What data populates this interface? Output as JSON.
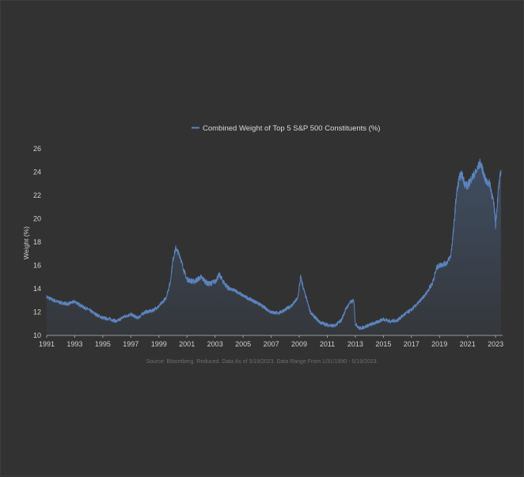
{
  "chart_data": {
    "type": "area",
    "title": "",
    "legend": {
      "placement": "top-center",
      "entries": [
        "Combined Weight of Top 5 S&P 500 Constituents (%)"
      ]
    },
    "xlabel": "",
    "ylabel": "Weight (%)",
    "x_tick_labels": [
      "1991",
      "1993",
      "1995",
      "1997",
      "1999",
      "2001",
      "2003",
      "2005",
      "2007",
      "2009",
      "2011",
      "2013",
      "2015",
      "2017",
      "2019",
      "2021",
      "2023"
    ],
    "y_tick_labels": [
      "10",
      "12",
      "14",
      "16",
      "18",
      "20",
      "22",
      "24",
      "26"
    ],
    "xlim": [
      1991.0,
      2023.5
    ],
    "ylim": [
      10,
      26
    ],
    "grid": false,
    "line_color": "#5b84bf",
    "fill_color": "#5b84bf",
    "source_note": "Source: Bloomberg. Reduced. Data As of 5/19/2023. Data Range From 1/31/1990 - 5/19/2023.",
    "series": [
      {
        "name": "Combined Weight of Top 5 S&P 500 Constituents (%)",
        "x": [
          1991.0,
          1991.5,
          1992.0,
          1992.5,
          1993.0,
          1993.5,
          1994.0,
          1994.5,
          1995.0,
          1995.5,
          1996.0,
          1996.5,
          1997.0,
          1997.5,
          1998.0,
          1998.5,
          1999.0,
          1999.5,
          1999.8,
          2000.0,
          2000.2,
          2000.5,
          2000.8,
          2001.0,
          2001.5,
          2002.0,
          2002.5,
          2003.0,
          2003.3,
          2003.7,
          2004.0,
          2004.5,
          2005.0,
          2005.5,
          2006.0,
          2006.5,
          2007.0,
          2007.5,
          2008.0,
          2008.5,
          2008.9,
          2009.1,
          2009.4,
          2009.8,
          2010.0,
          2010.5,
          2011.0,
          2011.5,
          2012.0,
          2012.3,
          2012.6,
          2012.9,
          2013.0,
          2013.3,
          2013.6,
          2014.0,
          2014.5,
          2015.0,
          2015.5,
          2016.0,
          2016.5,
          2017.0,
          2017.5,
          2018.0,
          2018.5,
          2018.8,
          2019.0,
          2019.5,
          2019.8,
          2020.0,
          2020.2,
          2020.4,
          2020.6,
          2020.8,
          2021.0,
          2021.3,
          2021.6,
          2021.9,
          2022.0,
          2022.3,
          2022.6,
          2022.9,
          2023.0,
          2023.2,
          2023.38
        ],
        "values": [
          13.3,
          13.0,
          12.8,
          12.7,
          12.9,
          12.5,
          12.2,
          11.8,
          11.5,
          11.4,
          11.2,
          11.6,
          11.8,
          11.5,
          12.0,
          12.1,
          12.5,
          13.2,
          14.5,
          16.5,
          17.5,
          16.8,
          15.5,
          14.8,
          14.6,
          15.0,
          14.4,
          14.6,
          15.2,
          14.4,
          14.0,
          13.8,
          13.4,
          13.1,
          12.8,
          12.4,
          12.0,
          11.9,
          12.2,
          12.6,
          13.2,
          15.0,
          13.6,
          12.0,
          11.7,
          11.1,
          10.9,
          10.8,
          11.3,
          12.2,
          12.8,
          13.0,
          11.0,
          10.6,
          10.7,
          10.9,
          11.1,
          11.4,
          11.2,
          11.3,
          11.8,
          12.2,
          12.8,
          13.5,
          14.5,
          15.8,
          16.0,
          16.2,
          16.8,
          19.0,
          22.0,
          23.5,
          23.8,
          23.0,
          22.8,
          23.5,
          24.0,
          24.8,
          24.5,
          23.2,
          23.0,
          21.0,
          19.5,
          22.5,
          24.2
        ]
      }
    ]
  }
}
